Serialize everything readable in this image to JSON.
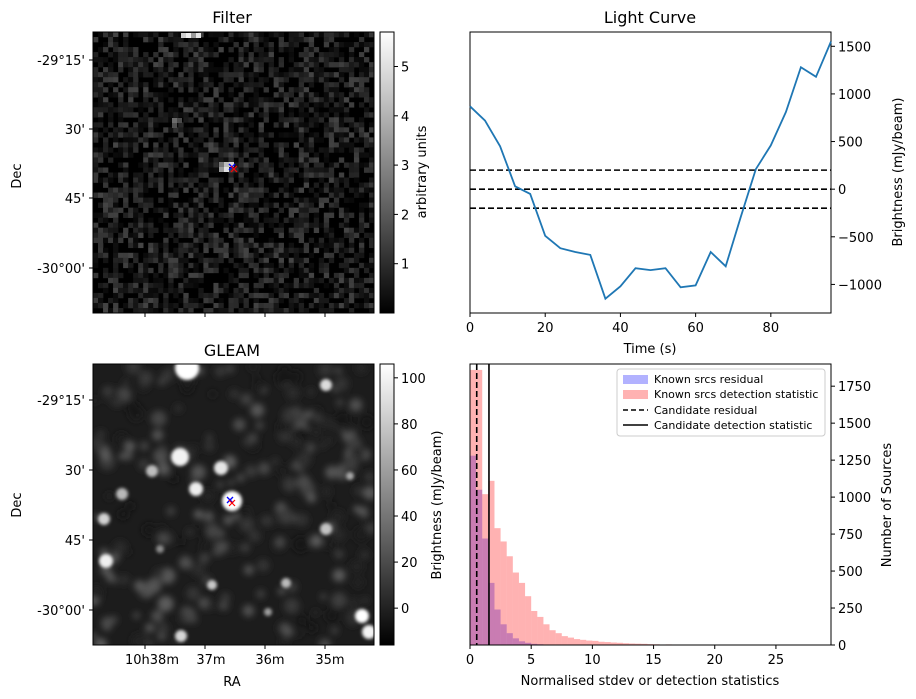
{
  "chart_data": [
    {
      "type": "heatmap",
      "title": "Filter",
      "ylabel": "Dec",
      "xlabel": "",
      "y_ticks": [
        "-29°15'",
        "30'",
        "45'",
        "-30°00'"
      ],
      "colorbar": {
        "label": "arbitrary units",
        "range": [
          0,
          5.7
        ],
        "ticks": [
          1,
          2,
          3,
          4,
          5
        ],
        "colormap": "gray"
      },
      "markers": [
        {
          "symbol": "x",
          "color": "#0000ff"
        },
        {
          "symbol": "x",
          "color": "#ff0000"
        }
      ]
    },
    {
      "type": "line",
      "title": "Light Curve",
      "xlabel": "Time (s)",
      "ylabel": "Brightness (mJy/beam)",
      "xlim": [
        0,
        96
      ],
      "ylim": [
        -1300,
        1650
      ],
      "x_ticks": [
        0,
        20,
        40,
        60,
        80
      ],
      "y_ticks": [
        -1000,
        -500,
        0,
        500,
        1000,
        1500
      ],
      "grid": false,
      "series": [
        {
          "color": "#1f77b4",
          "x": [
            0,
            4,
            8,
            12,
            16,
            20,
            24,
            28,
            32,
            36,
            40,
            44,
            48,
            52,
            56,
            60,
            64,
            68,
            72,
            76,
            80,
            84,
            88,
            92,
            96
          ],
          "y": [
            870,
            720,
            450,
            30,
            -50,
            -490,
            -620,
            -660,
            -690,
            -1150,
            -1020,
            -830,
            -850,
            -830,
            -1030,
            -1010,
            -660,
            -810,
            -290,
            210,
            460,
            810,
            1280,
            1180,
            1550
          ]
        }
      ],
      "hlines": [
        {
          "y": 200,
          "style": "dashed",
          "color": "#000000"
        },
        {
          "y": 0,
          "style": "dashed",
          "color": "#000000"
        },
        {
          "y": -200,
          "style": "dashed",
          "color": "#000000"
        }
      ]
    },
    {
      "type": "heatmap",
      "title": "GLEAM",
      "xlabel": "RA",
      "ylabel": "Dec",
      "x_ticks": [
        "10h38m",
        "37m",
        "36m",
        "35m"
      ],
      "y_ticks": [
        "-29°15'",
        "30'",
        "45'",
        "-30°00'"
      ],
      "colorbar": {
        "label": "Brightness (mJy/beam)",
        "range": [
          -16,
          106
        ],
        "ticks": [
          0,
          20,
          40,
          60,
          80,
          100
        ],
        "colormap": "gray"
      },
      "markers": [
        {
          "symbol": "x",
          "color": "#0000ff"
        },
        {
          "symbol": "x",
          "color": "#ff0000"
        }
      ]
    },
    {
      "type": "bar",
      "title": "",
      "xlabel": "Normalised stdev or detection statistics",
      "ylabel": "Number of Sources",
      "xlim": [
        0,
        29.5
      ],
      "ylim": [
        0,
        1900
      ],
      "x_ticks": [
        0,
        5,
        10,
        15,
        20,
        25
      ],
      "y_ticks": [
        0,
        250,
        500,
        750,
        1000,
        1250,
        1500,
        1750
      ],
      "bin_width": 0.5,
      "legend": {
        "placement": "top-right",
        "entries": [
          "Known srcs residual",
          "Known srcs detection statistic",
          "Candidate residual",
          "Candidate detection statistic"
        ]
      },
      "series": [
        {
          "name": "Known srcs residual",
          "color": "#0000ff",
          "alpha": 0.3,
          "bin_starts": [
            0,
            0.5,
            1.0,
            1.5,
            2.0,
            2.5,
            3.0,
            3.5,
            4.0,
            4.5,
            5.0,
            5.5,
            6.0
          ],
          "counts": [
            1280,
            1050,
            720,
            420,
            240,
            140,
            80,
            45,
            25,
            15,
            8,
            5,
            3
          ]
        },
        {
          "name": "Known srcs detection statistic",
          "color": "#ff0000",
          "alpha": 0.3,
          "bin_starts": [
            0,
            0.5,
            1.0,
            1.5,
            2.0,
            2.5,
            3.0,
            3.5,
            4.0,
            4.5,
            5.0,
            5.5,
            6.0,
            6.5,
            7.0,
            7.5,
            8.0,
            8.5,
            9.0,
            9.5,
            10.0,
            10.5,
            11.0,
            11.5,
            12.0,
            12.5,
            13.0,
            13.5,
            14.0,
            14.5,
            15.0,
            16.0,
            17.0,
            18.0,
            19.0,
            20.0
          ],
          "counts": [
            1860,
            1860,
            1020,
            1110,
            790,
            700,
            600,
            490,
            420,
            330,
            230,
            190,
            140,
            100,
            80,
            60,
            50,
            40,
            35,
            30,
            28,
            22,
            20,
            17,
            15,
            12,
            10,
            9,
            8,
            6,
            5,
            4,
            3,
            3,
            2,
            2
          ]
        }
      ],
      "vlines": [
        {
          "name": "Candidate residual",
          "x": 0.55,
          "style": "dashed",
          "color": "#000000"
        },
        {
          "name": "Candidate detection statistic",
          "x": 1.55,
          "style": "solid",
          "color": "#000000"
        }
      ]
    }
  ]
}
